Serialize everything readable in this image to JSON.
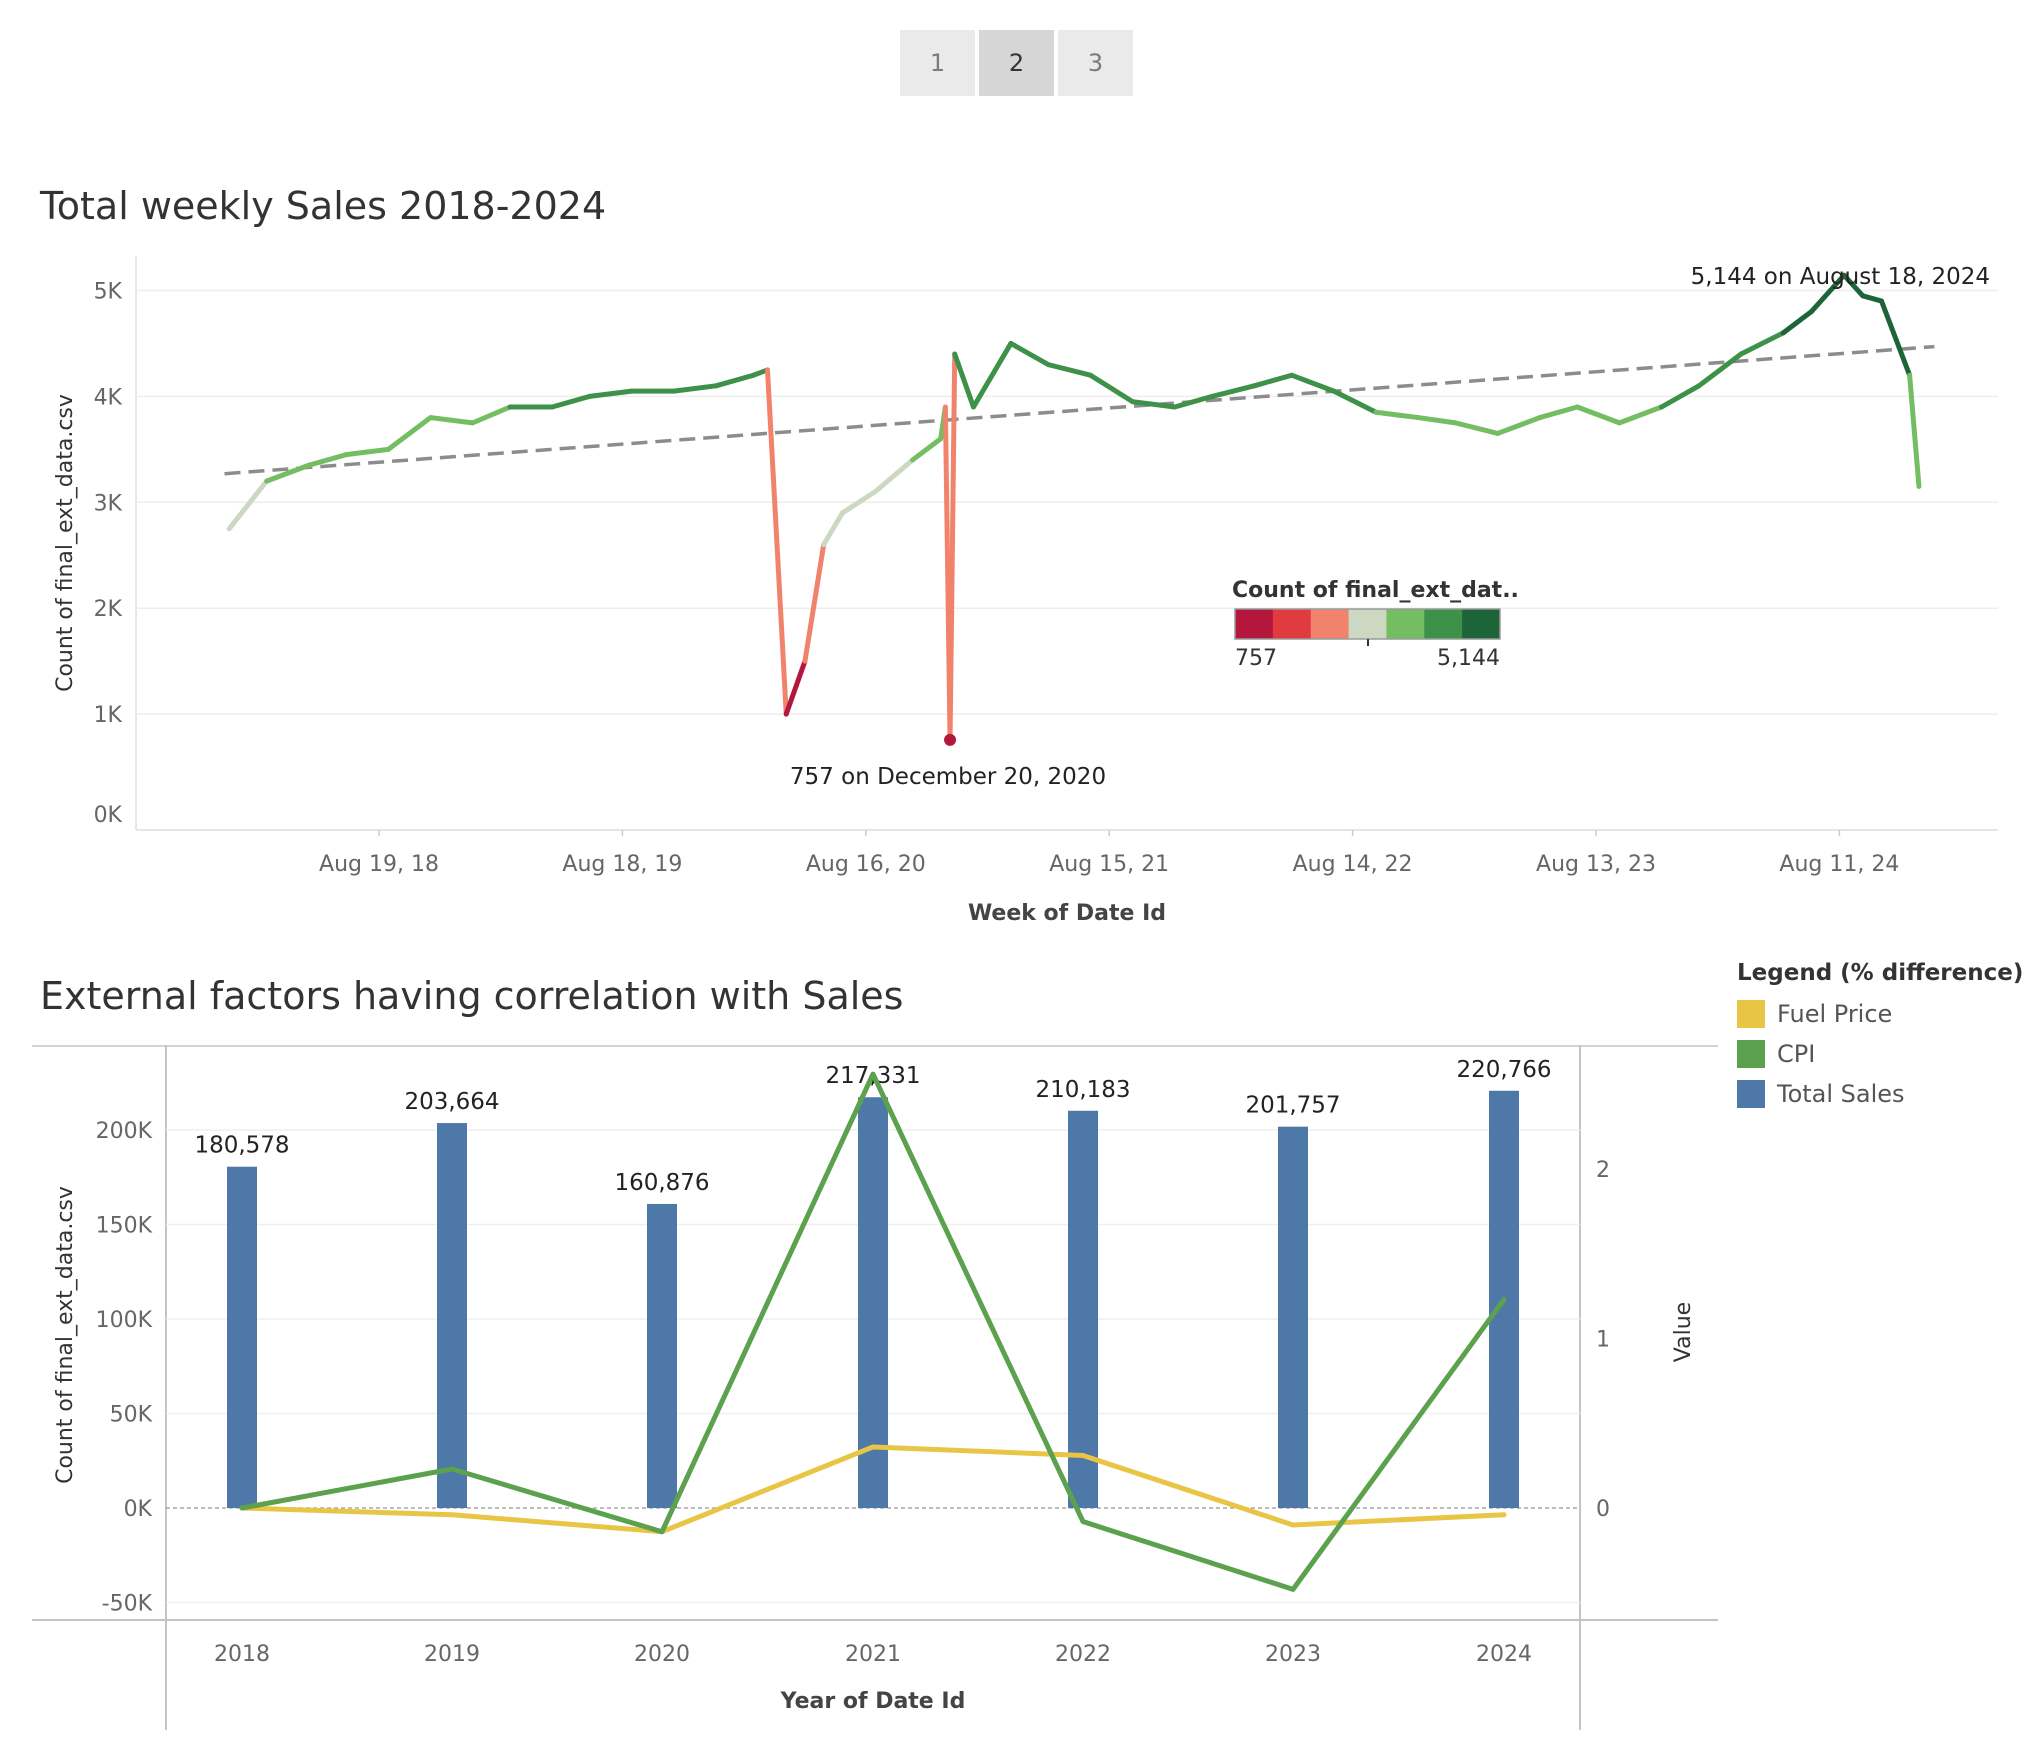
{
  "pager": {
    "pages": [
      "1",
      "2",
      "3"
    ],
    "active": 1
  },
  "chart1": {
    "title": "Total weekly Sales 2018-2024",
    "chart_data": {
      "type": "line",
      "title": "Total weekly Sales 2018-2024",
      "xlabel": "Week of Date Id",
      "ylabel": "Count of final_ext_data.csv",
      "y_ticks": [
        "0K",
        "1K",
        "2K",
        "3K",
        "4K",
        "5K"
      ],
      "x_ticks": [
        "Aug 19, 18",
        "Aug 18, 19",
        "Aug 16, 20",
        "Aug 15, 21",
        "Aug 14, 22",
        "Aug 13, 23",
        "Aug 11, 24"
      ],
      "ylim": [
        0,
        5400
      ],
      "grid": true,
      "series": [
        {
          "x": [
            "2018-01-07",
            "2018-03-04",
            "2018-05-06",
            "2018-07-01",
            "2018-09-02",
            "2018-11-04",
            "2019-01-06",
            "2019-03-03",
            "2019-05-05",
            "2019-06-30",
            "2019-09-01",
            "2019-11-03",
            "2020-01-05",
            "2020-03-01",
            "2020-03-22",
            "2020-04-19",
            "2020-05-17",
            "2020-06-14",
            "2020-07-12",
            "2020-08-30",
            "2020-10-25",
            "2020-12-06",
            "2020-12-13",
            "2020-12-20",
            "2020-12-27",
            "2021-01-24",
            "2021-03-21",
            "2021-05-16",
            "2021-07-18",
            "2021-09-19",
            "2021-11-21",
            "2022-01-16",
            "2022-03-20",
            "2022-05-15",
            "2022-07-17",
            "2022-09-18",
            "2022-11-20",
            "2023-01-15",
            "2023-03-19",
            "2023-05-21",
            "2023-07-16",
            "2023-09-17",
            "2023-11-19",
            "2024-01-14",
            "2024-03-17",
            "2024-05-19",
            "2024-06-30",
            "2024-08-18",
            "2024-09-15",
            "2024-10-13",
            "2024-11-24",
            "2024-12-08"
          ],
          "y": [
            2750,
            3200,
            3350,
            3450,
            3500,
            3800,
            3750,
            3900,
            3900,
            4000,
            4050,
            4050,
            4100,
            4200,
            4250,
            1000,
            1500,
            2600,
            2900,
            3100,
            3400,
            3600,
            3900,
            757,
            4400,
            3900,
            4500,
            4300,
            4200,
            3950,
            3900,
            4000,
            4100,
            4200,
            4050,
            3850,
            3800,
            3750,
            3650,
            3800,
            3900,
            3750,
            3900,
            4100,
            4400,
            4600,
            4800,
            5144,
            4950,
            4900,
            4200,
            3150
          ]
        }
      ],
      "trend_line": {
        "style": "dashed",
        "from": [
          "2017-12-31",
          3270
        ],
        "to": [
          "2024-12-31",
          4470
        ]
      },
      "annotations": [
        "5,144 on August 18, 2024",
        "757 on December 20, 2020"
      ],
      "color_legend": {
        "title": "Count of final_ext_dat..",
        "min_label": "757",
        "max_label": "5,144",
        "colors": [
          "#b3173b",
          "#e03b3f",
          "#f1836c",
          "#cdd8c2",
          "#74bd62",
          "#3e9148",
          "#1d6539"
        ]
      }
    }
  },
  "chart2": {
    "title": "External factors having correlation with Sales",
    "legend": {
      "title": "Legend (% difference)",
      "items": [
        {
          "label": "Fuel Price",
          "color": "#e8c545"
        },
        {
          "label": "CPI",
          "color": "#5ba14e"
        },
        {
          "label": "Total Sales",
          "color": "#4e78a7"
        }
      ]
    },
    "chart_data": {
      "type": "bar",
      "title": "External factors having correlation with Sales",
      "xlabel": "Year of Date Id",
      "ylabel": "Count of final_ext_data.csv",
      "ylabel_right": "Value",
      "categories": [
        "2018",
        "2019",
        "2020",
        "2021",
        "2022",
        "2023",
        "2024"
      ],
      "y_ticks": [
        "-50K",
        "0K",
        "50K",
        "100K",
        "150K",
        "200K"
      ],
      "y2_ticks": [
        "0",
        "1",
        "2"
      ],
      "ylim": [
        -58000,
        243000
      ],
      "y2lim": [
        -0.66,
        2.6
      ],
      "series": [
        {
          "name": "Total Sales",
          "axis": "left",
          "values": [
            180578,
            203664,
            160876,
            217331,
            210183,
            201757,
            220766
          ],
          "labels": [
            "180,578",
            "203,664",
            "160,876",
            "217,331",
            "210,183",
            "201,757",
            "220,766"
          ]
        },
        {
          "name": "CPI",
          "axis": "right",
          "values": [
            0.0,
            0.23,
            -0.14,
            2.56,
            -0.08,
            -0.48,
            1.23
          ]
        },
        {
          "name": "Fuel Price",
          "axis": "right",
          "values": [
            0.0,
            -0.04,
            -0.14,
            0.36,
            0.31,
            -0.1,
            -0.04
          ]
        }
      ]
    }
  }
}
